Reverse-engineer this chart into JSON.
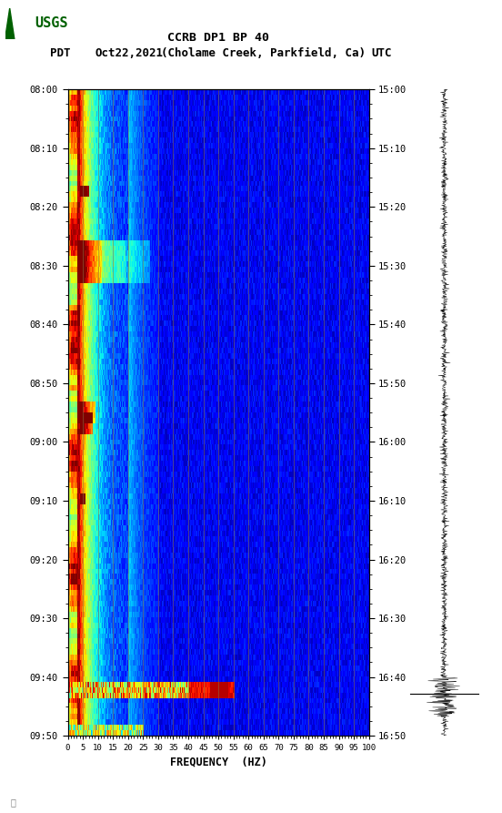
{
  "title_line1": "CCRB DP1 BP 40",
  "title_line2_pdt": "PDT",
  "title_line2_date": "Oct22,2021",
  "title_line2_loc": "(Cholame Creek, Parkfield, Ca)",
  "title_line2_utc": "UTC",
  "xlabel": "FREQUENCY  (HZ)",
  "freq_ticks": [
    0,
    5,
    10,
    15,
    20,
    25,
    30,
    35,
    40,
    45,
    50,
    55,
    60,
    65,
    70,
    75,
    80,
    85,
    90,
    95,
    100
  ],
  "freq_min": 0,
  "freq_max": 100,
  "ytick_pdt": [
    "08:00",
    "08:10",
    "08:20",
    "08:30",
    "08:40",
    "08:50",
    "09:00",
    "09:10",
    "09:20",
    "09:30",
    "09:40",
    "09:50"
  ],
  "ytick_utc": [
    "15:00",
    "15:10",
    "15:20",
    "15:30",
    "15:40",
    "15:50",
    "16:00",
    "16:10",
    "16:20",
    "16:30",
    "16:40",
    "16:50"
  ],
  "bg_color": "#ffffff",
  "vertical_line_freqs": [
    5,
    10,
    15,
    20,
    25,
    30,
    35,
    40,
    45,
    50,
    55,
    60,
    65,
    70,
    75,
    80,
    85,
    90,
    95,
    100
  ],
  "vertical_line_color": "#8B7040",
  "vertical_line_alpha": 0.55,
  "usgs_logo_color": "#006000",
  "n_time": 120,
  "n_freq": 500,
  "seed": 1234
}
